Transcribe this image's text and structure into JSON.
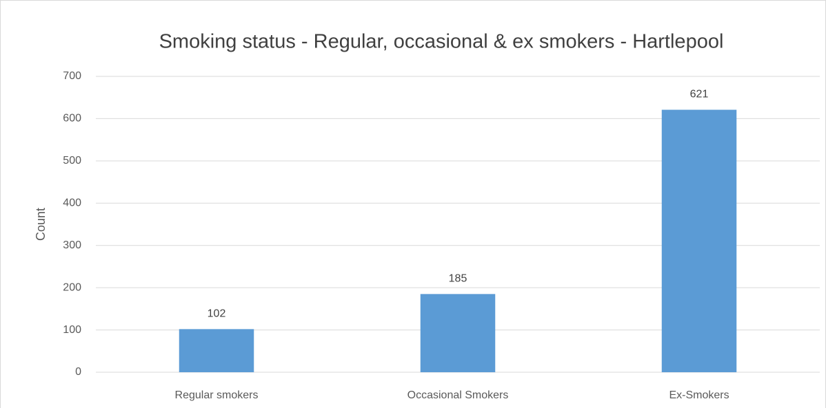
{
  "chart_data": {
    "type": "bar",
    "title": "Smoking status - Regular, occasional & ex smokers - Hartlepool",
    "y_label": "Count",
    "categories": [
      "Regular smokers",
      "Occasional Smokers",
      "Ex-Smokers"
    ],
    "values": [
      102,
      185,
      621
    ],
    "color": "#5b9bd5",
    "ylim": [
      0,
      700
    ],
    "yticks": [
      0,
      100,
      200,
      300,
      400,
      500,
      600,
      700
    ],
    "grid": true
  }
}
